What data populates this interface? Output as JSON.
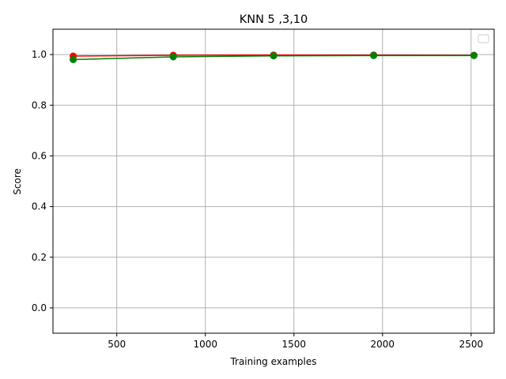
{
  "chart_data": {
    "type": "line",
    "title": "KNN 5 ,3,10",
    "xlabel": "Training examples",
    "ylabel": "Score",
    "xlim": [
      140,
      2630
    ],
    "ylim": [
      -0.1,
      1.1
    ],
    "xticks": [
      500,
      1000,
      1500,
      2000,
      2500
    ],
    "yticks": [
      0.0,
      0.2,
      0.4,
      0.6,
      0.8,
      1.0
    ],
    "xtick_labels": [
      "500",
      "1000",
      "1500",
      "2000",
      "2500"
    ],
    "ytick_labels": [
      "0.0",
      "0.2",
      "0.4",
      "0.6",
      "0.8",
      "1.0"
    ],
    "grid": true,
    "legend": {
      "placement": "top-right",
      "entries": []
    },
    "x": [
      254,
      819,
      1385,
      1950,
      2516
    ],
    "series": [
      {
        "color": "#ff0000",
        "marker": "circle",
        "values": [
          0.994,
          0.997,
          0.998,
          0.998,
          0.997
        ]
      },
      {
        "color": "#008000",
        "marker": "circle",
        "values": [
          0.98,
          0.991,
          0.995,
          0.996,
          0.996
        ]
      }
    ]
  }
}
